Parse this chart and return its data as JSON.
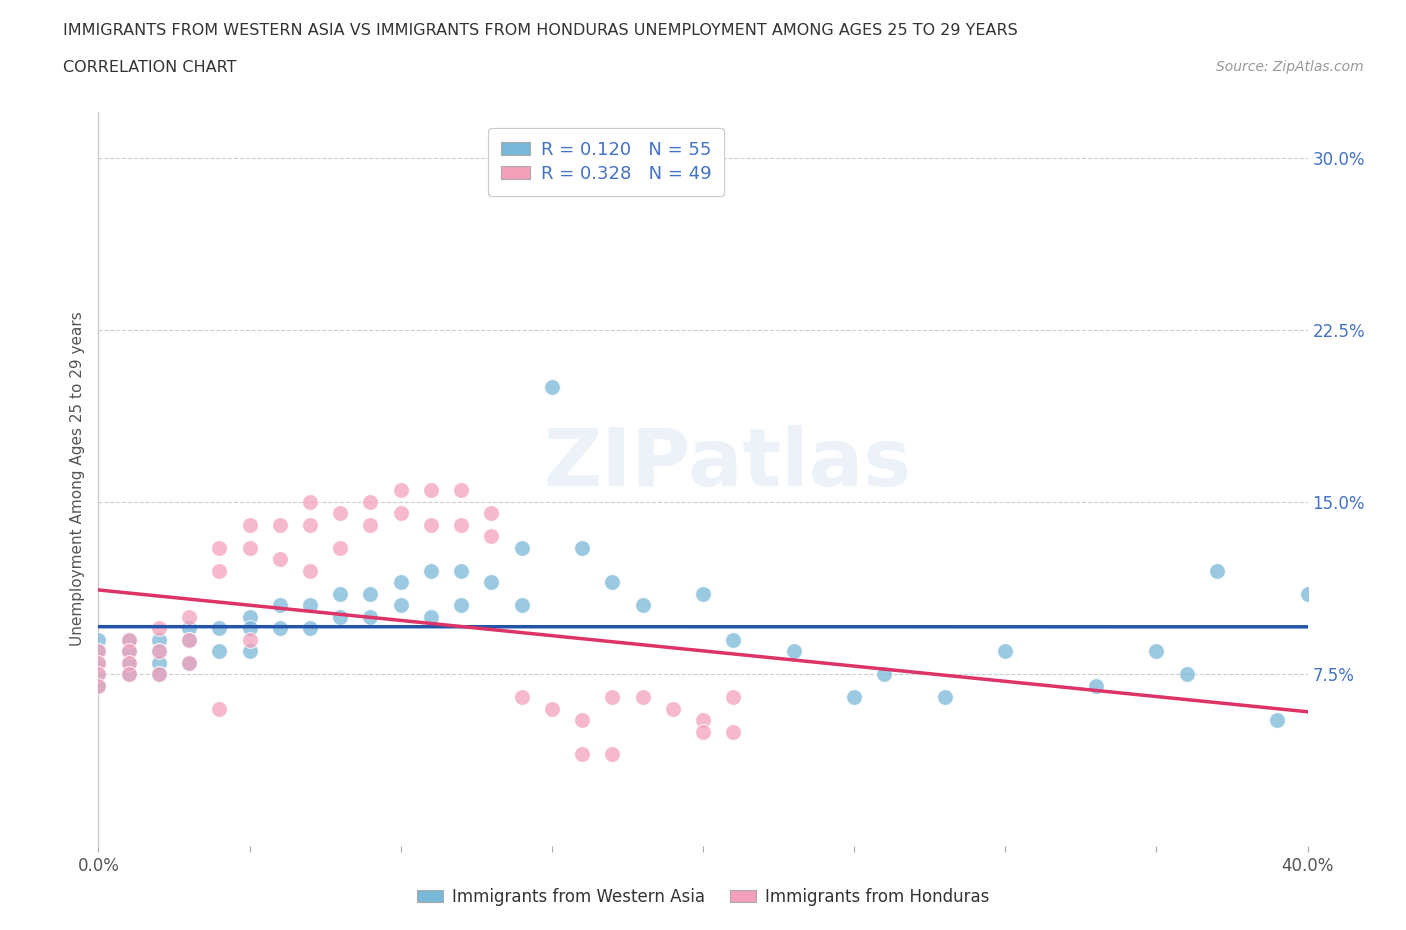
{
  "title_line1": "IMMIGRANTS FROM WESTERN ASIA VS IMMIGRANTS FROM HONDURAS UNEMPLOYMENT AMONG AGES 25 TO 29 YEARS",
  "title_line2": "CORRELATION CHART",
  "source": "Source: ZipAtlas.com",
  "ylabel": "Unemployment Among Ages 25 to 29 years",
  "xlim": [
    0.0,
    0.4
  ],
  "ylim": [
    0.0,
    0.32
  ],
  "yticks": [
    0.0,
    0.075,
    0.15,
    0.225,
    0.3
  ],
  "yticklabels": [
    "",
    "7.5%",
    "15.0%",
    "22.5%",
    "30.0%"
  ],
  "color_western_asia": "#7ab8d9",
  "color_honduras": "#f4a0bb",
  "line_color_western_asia": "#2255aa",
  "line_color_honduras": "#dd3366",
  "dashed_line_color": "#ddaacc",
  "R_western_asia": 0.12,
  "N_western_asia": 55,
  "R_honduras": 0.328,
  "N_honduras": 49,
  "western_asia_x": [
    0.0,
    0.0,
    0.0,
    0.0,
    0.0,
    0.01,
    0.01,
    0.01,
    0.01,
    0.02,
    0.02,
    0.02,
    0.02,
    0.03,
    0.03,
    0.03,
    0.04,
    0.04,
    0.05,
    0.05,
    0.05,
    0.06,
    0.06,
    0.07,
    0.07,
    0.08,
    0.08,
    0.09,
    0.09,
    0.1,
    0.1,
    0.11,
    0.11,
    0.12,
    0.12,
    0.13,
    0.14,
    0.14,
    0.15,
    0.16,
    0.17,
    0.18,
    0.2,
    0.21,
    0.23,
    0.25,
    0.26,
    0.28,
    0.3,
    0.33,
    0.35,
    0.36,
    0.37,
    0.39,
    0.4
  ],
  "western_asia_y": [
    0.09,
    0.085,
    0.08,
    0.075,
    0.07,
    0.09,
    0.085,
    0.08,
    0.075,
    0.09,
    0.085,
    0.08,
    0.075,
    0.095,
    0.09,
    0.08,
    0.095,
    0.085,
    0.1,
    0.095,
    0.085,
    0.105,
    0.095,
    0.105,
    0.095,
    0.11,
    0.1,
    0.11,
    0.1,
    0.115,
    0.105,
    0.12,
    0.1,
    0.12,
    0.105,
    0.115,
    0.13,
    0.105,
    0.2,
    0.13,
    0.115,
    0.105,
    0.11,
    0.09,
    0.085,
    0.065,
    0.075,
    0.065,
    0.085,
    0.07,
    0.085,
    0.075,
    0.12,
    0.055,
    0.11
  ],
  "honduras_x": [
    0.0,
    0.0,
    0.0,
    0.0,
    0.01,
    0.01,
    0.01,
    0.01,
    0.02,
    0.02,
    0.02,
    0.03,
    0.03,
    0.03,
    0.04,
    0.04,
    0.04,
    0.05,
    0.05,
    0.05,
    0.06,
    0.06,
    0.07,
    0.07,
    0.07,
    0.08,
    0.08,
    0.09,
    0.09,
    0.1,
    0.1,
    0.11,
    0.11,
    0.12,
    0.12,
    0.13,
    0.13,
    0.14,
    0.15,
    0.16,
    0.16,
    0.17,
    0.17,
    0.18,
    0.19,
    0.2,
    0.2,
    0.21,
    0.21
  ],
  "honduras_y": [
    0.085,
    0.08,
    0.075,
    0.07,
    0.09,
    0.085,
    0.08,
    0.075,
    0.095,
    0.085,
    0.075,
    0.1,
    0.09,
    0.08,
    0.13,
    0.12,
    0.06,
    0.14,
    0.13,
    0.09,
    0.14,
    0.125,
    0.15,
    0.14,
    0.12,
    0.145,
    0.13,
    0.15,
    0.14,
    0.155,
    0.145,
    0.155,
    0.14,
    0.155,
    0.14,
    0.145,
    0.135,
    0.065,
    0.06,
    0.055,
    0.04,
    0.065,
    0.04,
    0.065,
    0.06,
    0.055,
    0.05,
    0.065,
    0.05
  ],
  "watermark_text": "ZIPatlas",
  "background_color": "#ffffff",
  "grid_color": "#cccccc",
  "legend_label_blue": "R = 0.120   N = 55",
  "legend_label_pink": "R = 0.328   N = 49",
  "bottom_label_blue": "Immigrants from Western Asia",
  "bottom_label_pink": "Immigrants from Honduras"
}
